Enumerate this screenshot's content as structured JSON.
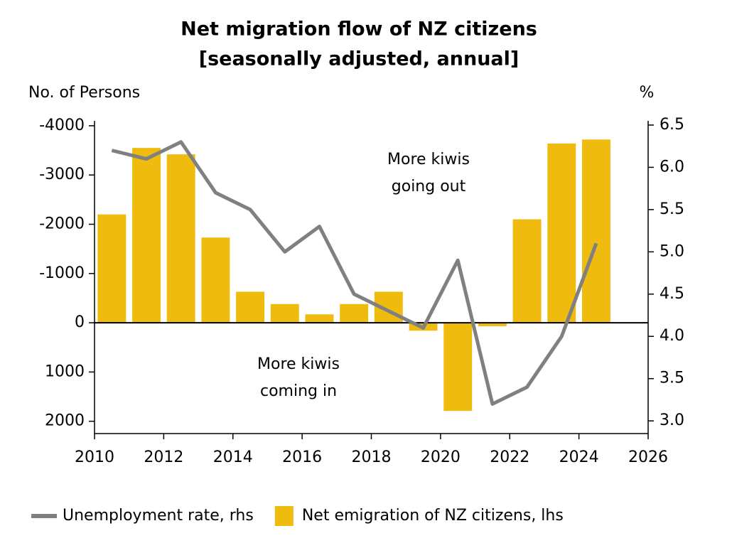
{
  "chart_data": {
    "type": "combo",
    "title": [
      "Net migration flow of NZ citizens",
      "[seasonally adjusted, annual]"
    ],
    "y_label": "No. of Persons",
    "y2_label": "%",
    "x": [
      2010.5,
      2011.5,
      2012.5,
      2013.5,
      2014.5,
      2015.5,
      2016.5,
      2017.5,
      2018.5,
      2019.5,
      2020.5,
      2021.5,
      2022.5,
      2023.5,
      2024.5
    ],
    "series": [
      {
        "name": "Unemployment rate, rhs",
        "type": "line",
        "axis": "y2",
        "color": "#808080",
        "values": [
          6.2,
          6.1,
          6.3,
          5.7,
          5.5,
          5.0,
          5.3,
          4.5,
          4.3,
          4.1,
          4.9,
          3.2,
          3.4,
          4.0,
          5.1
        ]
      },
      {
        "name": "Net emigration of NZ citizens, lhs",
        "type": "bar",
        "color": "#f0bb0f",
        "values": [
          -2200,
          -3550,
          -3420,
          -1730,
          -630,
          -380,
          -170,
          -380,
          -630,
          160,
          1790,
          70,
          -2100,
          -3640,
          -3720
        ]
      }
    ],
    "annotations": [
      [
        "More kiwis",
        "going out"
      ],
      [
        "More kiwis",
        "coming in"
      ]
    ],
    "xlim": [
      2010,
      2026
    ],
    "xticks": [
      2010,
      2012,
      2014,
      2016,
      2018,
      2020,
      2022,
      2024,
      2026
    ],
    "ylim": [
      2250,
      -4100
    ],
    "yticks": [
      -4000,
      -3000,
      -2000,
      -1000,
      0,
      1000,
      2000
    ],
    "y2lim": [
      2.85,
      6.55
    ],
    "y2ticks": [
      {
        "value": 6.5,
        "label": "6.5"
      },
      {
        "value": 6,
        "label": "6.0"
      },
      {
        "value": 5.5,
        "label": "5.5"
      },
      {
        "value": 5,
        "label": "5.0"
      },
      {
        "value": 4.5,
        "label": "4.5"
      },
      {
        "value": 4,
        "label": "4.0"
      },
      {
        "value": 3.5,
        "label": "3.5"
      },
      {
        "value": 3,
        "label": "3.0"
      }
    ]
  }
}
